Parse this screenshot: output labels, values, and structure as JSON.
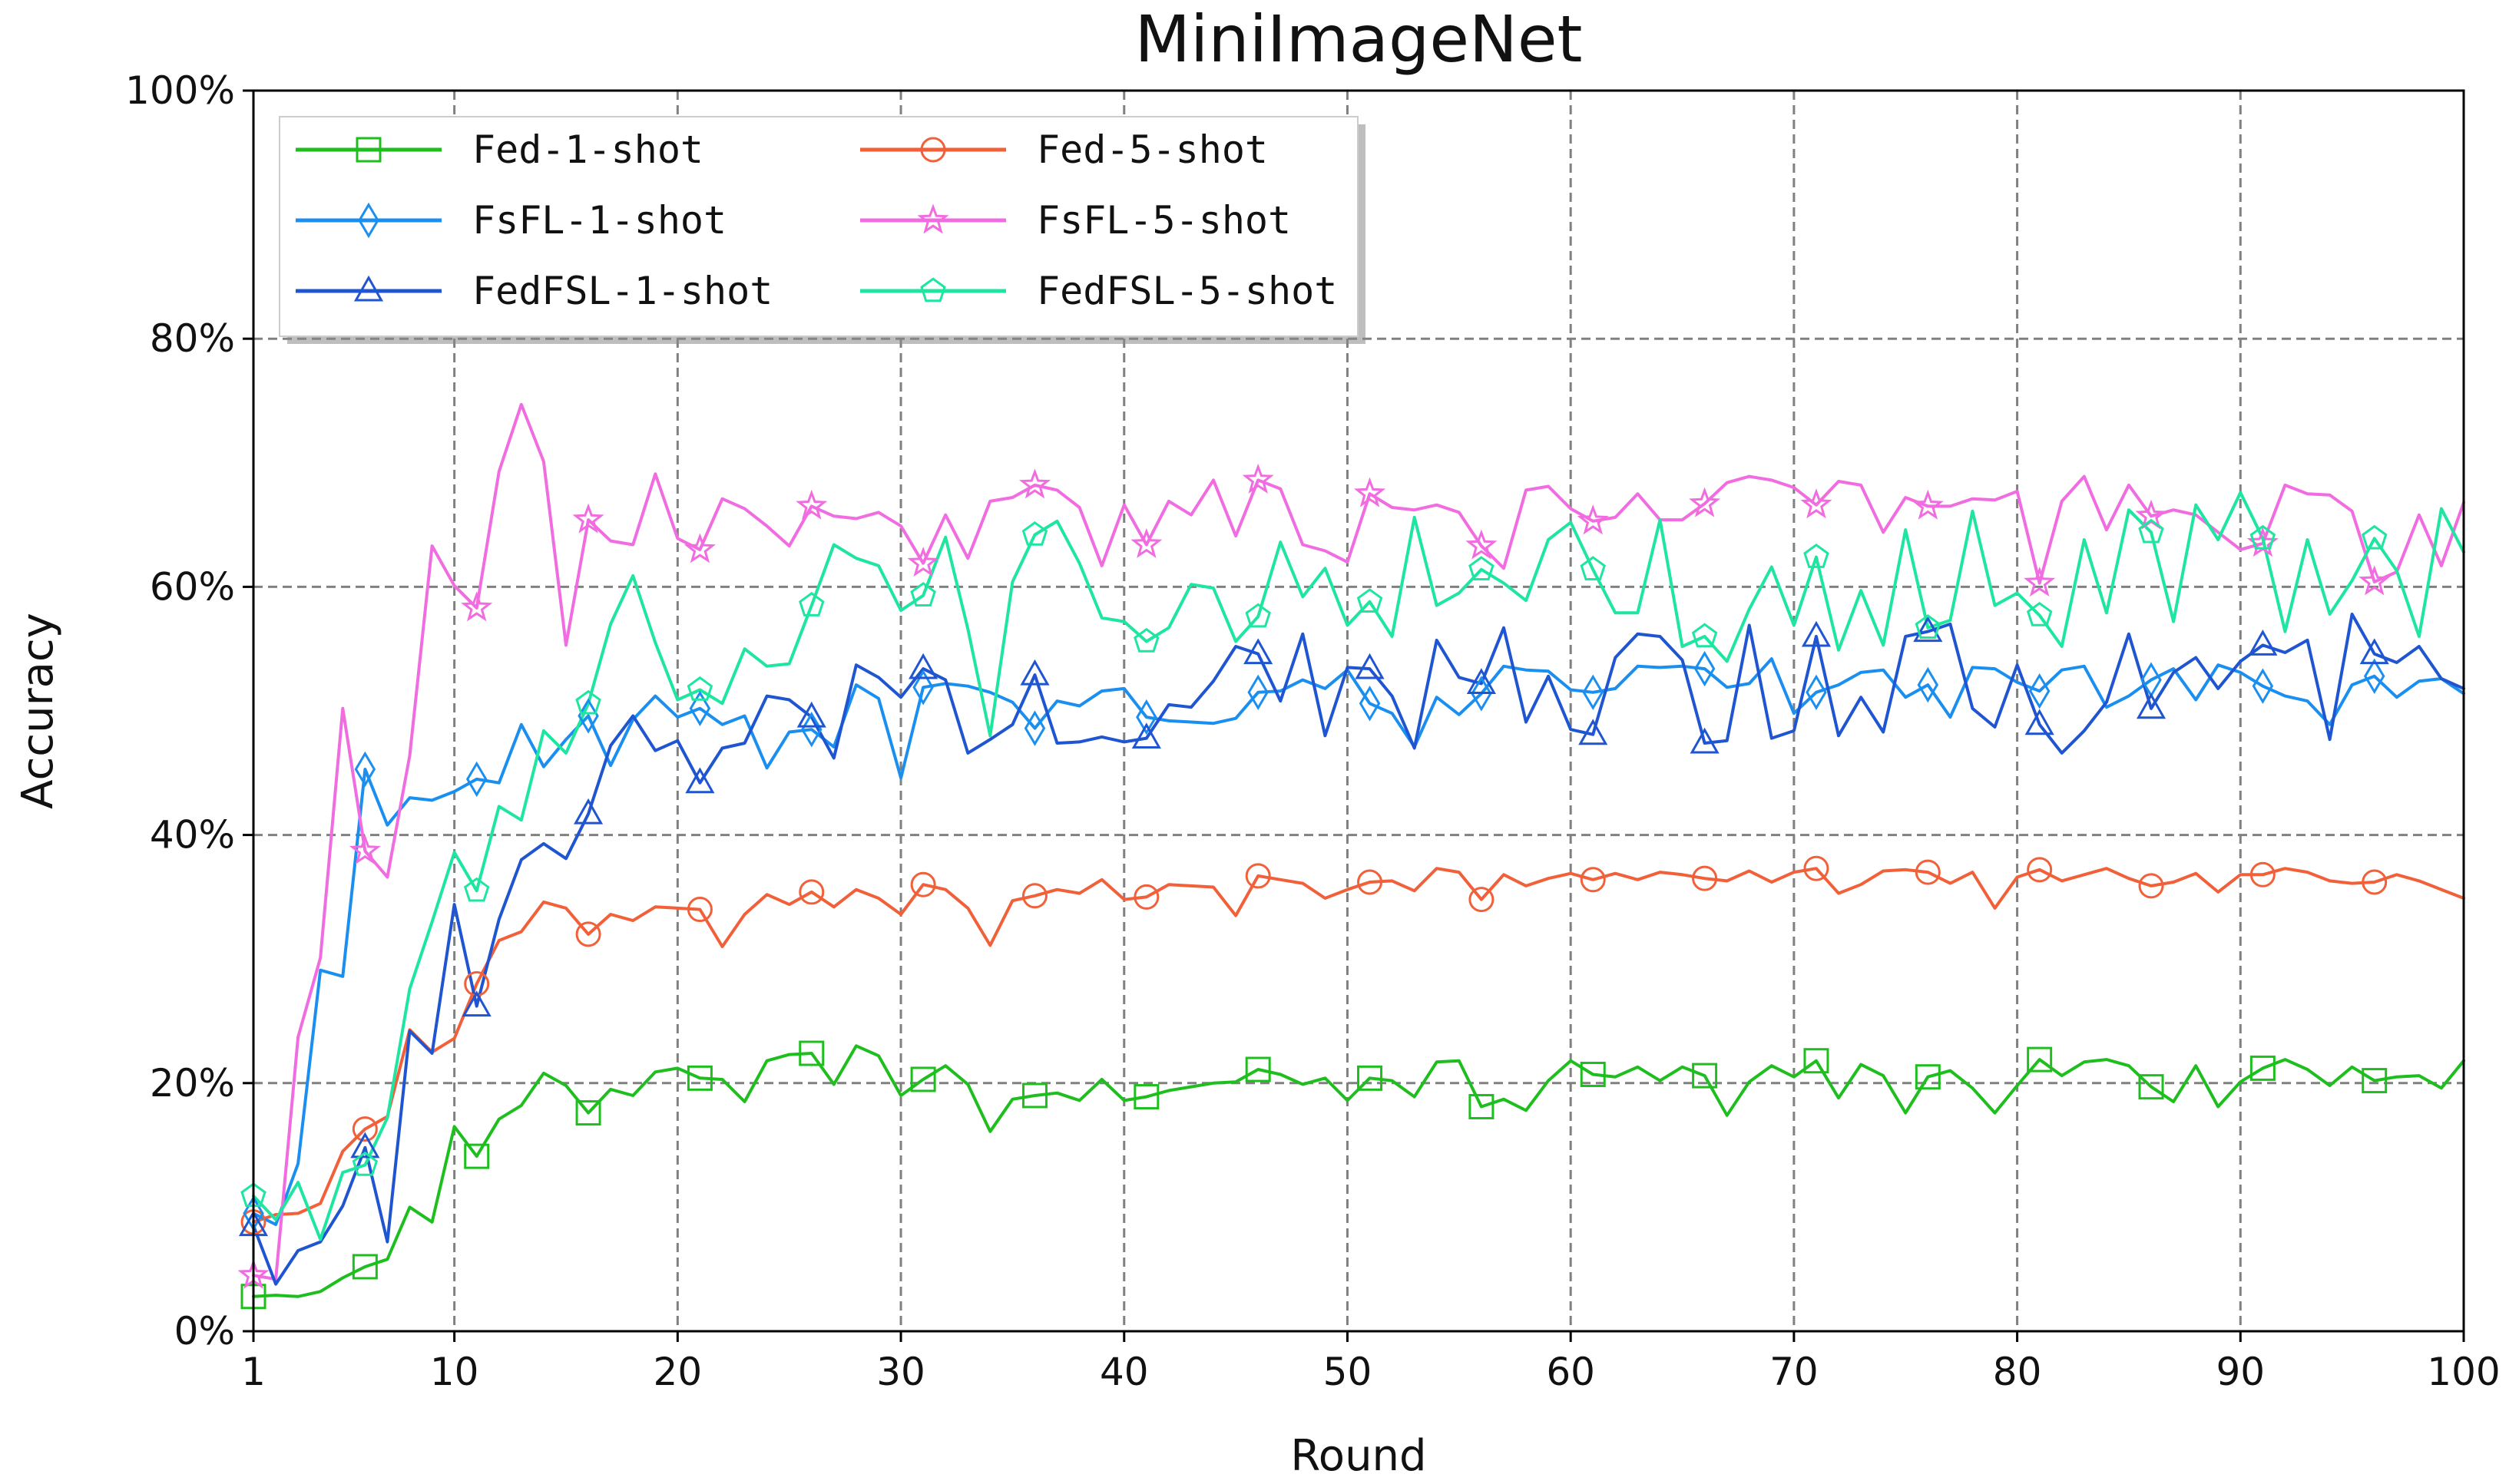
{
  "chart_data": {
    "type": "line",
    "title": "MiniImageNet",
    "xlabel": "Round",
    "ylabel": "Accuracy",
    "xlim": [
      1,
      100
    ],
    "ylim": [
      0,
      100
    ],
    "xticks": [
      1,
      10,
      20,
      30,
      40,
      50,
      60,
      70,
      80,
      90,
      100
    ],
    "xtick_labels": [
      "1",
      "10",
      "20",
      "30",
      "40",
      "50",
      "60",
      "70",
      "80",
      "90",
      "100"
    ],
    "yticks": [
      0,
      20,
      40,
      60,
      80,
      100
    ],
    "ytick_labels": [
      "0%",
      "20%",
      "40%",
      "60%",
      "80%",
      "100%"
    ],
    "grid": true,
    "legend_position": "top-left",
    "x": [
      1,
      2,
      3,
      4,
      5,
      6,
      7,
      8,
      9,
      10,
      11,
      12,
      13,
      14,
      15,
      16,
      17,
      18,
      19,
      20,
      21,
      22,
      23,
      24,
      25,
      26,
      27,
      28,
      29,
      30,
      31,
      32,
      33,
      34,
      35,
      36,
      37,
      38,
      39,
      40,
      41,
      42,
      43,
      44,
      45,
      46,
      47,
      48,
      49,
      50,
      51,
      52,
      53,
      54,
      55,
      56,
      57,
      58,
      59,
      60,
      61,
      62,
      63,
      64,
      65,
      66,
      67,
      68,
      69,
      70,
      71,
      72,
      73,
      74,
      75,
      76,
      77,
      78,
      79,
      80,
      81,
      82,
      83,
      84,
      85,
      86,
      87,
      88,
      89,
      90,
      91,
      92,
      93,
      94,
      95,
      96,
      97,
      98,
      99,
      100
    ],
    "series": [
      {
        "name": "Fed-1-shot",
        "color": "#1fbe1f",
        "marker": "square",
        "values": [
          2.8,
          2.9,
          2.8,
          3.2,
          4.3,
          5.2,
          5.8,
          10.0,
          8.8,
          16.5,
          14.1,
          17.1,
          18.2,
          20.8,
          19.8,
          17.6,
          19.5,
          19.0,
          20.9,
          21.2,
          20.4,
          20.3,
          18.5,
          21.8,
          22.3,
          22.4,
          19.9,
          23.0,
          22.2,
          19.0,
          20.3,
          21.4,
          19.9,
          16.1,
          18.7,
          19.0,
          19.2,
          18.6,
          20.3,
          18.6,
          18.9,
          19.4,
          19.7,
          20.0,
          20.1,
          21.1,
          20.7,
          19.9,
          20.4,
          18.6,
          20.4,
          20.2,
          18.9,
          21.7,
          21.8,
          18.1,
          18.7,
          17.8,
          20.2,
          21.8,
          20.7,
          20.5,
          21.3,
          20.2,
          21.3,
          20.6,
          17.4,
          20.1,
          21.4,
          20.5,
          21.8,
          18.8,
          21.5,
          20.6,
          17.6,
          20.5,
          21.0,
          19.6,
          17.6,
          19.8,
          21.9,
          20.6,
          21.7,
          21.9,
          21.4,
          19.7,
          18.5,
          21.4,
          18.1,
          20.1,
          21.2,
          21.9,
          21.1,
          19.8,
          21.3,
          20.2,
          20.5,
          20.6,
          19.6,
          21.8
        ]
      },
      {
        "name": "Fed-5-shot",
        "color": "#f2603a",
        "marker": "circle",
        "values": [
          8.8,
          9.4,
          9.5,
          10.3,
          14.5,
          16.3,
          17.3,
          24.3,
          22.5,
          23.6,
          28.0,
          31.5,
          32.2,
          34.6,
          34.1,
          32.0,
          33.6,
          33.1,
          34.2,
          34.1,
          34.0,
          31.0,
          33.6,
          35.2,
          34.4,
          35.4,
          34.2,
          35.6,
          34.9,
          33.6,
          36.0,
          35.6,
          34.1,
          31.1,
          34.7,
          35.1,
          35.6,
          35.3,
          36.4,
          34.8,
          35.0,
          36.0,
          35.9,
          35.8,
          33.5,
          36.7,
          36.4,
          36.1,
          34.9,
          35.6,
          36.2,
          36.3,
          35.5,
          37.3,
          37.0,
          34.8,
          36.8,
          35.9,
          36.5,
          36.9,
          36.4,
          36.9,
          36.4,
          37.0,
          36.8,
          36.5,
          36.3,
          37.1,
          36.2,
          37.0,
          37.3,
          35.3,
          36.0,
          37.1,
          37.2,
          37.0,
          36.1,
          37.0,
          34.1,
          36.6,
          37.2,
          36.3,
          36.8,
          37.3,
          36.5,
          35.9,
          36.2,
          36.9,
          35.4,
          36.8,
          36.8,
          37.3,
          37.0,
          36.3,
          36.1,
          36.2,
          36.8,
          36.3,
          35.6,
          34.9
        ]
      },
      {
        "name": "FsFL-1-shot",
        "color": "#1a8ff0",
        "marker": "diamond",
        "values": [
          9.5,
          8.6,
          13.5,
          29.1,
          28.6,
          45.3,
          40.8,
          43.0,
          42.8,
          43.5,
          44.5,
          44.2,
          48.9,
          45.5,
          47.7,
          49.6,
          45.6,
          49.3,
          51.2,
          49.5,
          50.2,
          48.9,
          49.6,
          45.4,
          48.3,
          48.5,
          47.1,
          52.1,
          51.0,
          44.6,
          51.9,
          52.2,
          52.0,
          51.5,
          50.7,
          48.6,
          50.8,
          50.4,
          51.6,
          51.8,
          49.5,
          49.2,
          49.1,
          49.0,
          49.4,
          51.5,
          51.6,
          52.5,
          51.8,
          53.3,
          50.6,
          49.8,
          47.1,
          51.1,
          49.7,
          51.4,
          53.6,
          53.3,
          53.2,
          51.7,
          51.5,
          51.8,
          53.6,
          53.5,
          53.6,
          53.4,
          51.9,
          52.2,
          54.2,
          49.8,
          51.5,
          52.1,
          53.1,
          53.3,
          51.1,
          52.1,
          49.5,
          53.5,
          53.4,
          52.3,
          51.6,
          53.3,
          53.6,
          50.3,
          51.2,
          52.5,
          53.4,
          50.9,
          53.7,
          53.1,
          52.0,
          51.2,
          50.8,
          48.9,
          52.1,
          52.8,
          51.1,
          52.4,
          52.6,
          51.4
        ]
      },
      {
        "name": "FsFL-5-shot",
        "color": "#f06ce0",
        "marker": "star",
        "values": [
          4.5,
          4.2,
          23.7,
          30.1,
          50.2,
          38.7,
          36.6,
          46.4,
          63.3,
          60.1,
          58.3,
          69.3,
          74.7,
          70.1,
          55.3,
          65.4,
          63.7,
          63.4,
          69.1,
          63.9,
          63.0,
          67.1,
          66.3,
          64.9,
          63.3,
          66.5,
          65.7,
          65.5,
          66.0,
          64.9,
          61.9,
          65.8,
          62.3,
          66.9,
          67.2,
          68.2,
          67.8,
          66.4,
          61.7,
          66.6,
          63.4,
          66.9,
          65.8,
          68.6,
          64.1,
          68.6,
          67.9,
          63.4,
          62.9,
          62.0,
          67.5,
          66.4,
          66.2,
          66.6,
          66.0,
          63.3,
          61.5,
          67.8,
          68.1,
          66.3,
          65.3,
          65.6,
          67.5,
          65.4,
          65.4,
          66.7,
          68.4,
          68.9,
          68.6,
          68.0,
          66.6,
          68.5,
          68.2,
          64.4,
          67.2,
          66.5,
          66.5,
          67.1,
          67.0,
          67.7,
          60.3,
          66.9,
          68.9,
          64.6,
          68.2,
          65.7,
          66.2,
          65.8,
          64.4,
          63.0,
          63.5,
          68.2,
          67.5,
          67.4,
          66.1,
          60.4,
          61.2,
          65.8,
          61.7,
          66.8
        ]
      },
      {
        "name": "FedFSL-1-shot",
        "color": "#1f55d1",
        "marker": "triangle",
        "values": [
          8.5,
          3.8,
          6.5,
          7.2,
          10.1,
          14.8,
          7.2,
          24.2,
          22.4,
          34.4,
          26.2,
          33.2,
          38.0,
          39.3,
          38.1,
          41.7,
          47.2,
          49.6,
          46.8,
          47.6,
          44.2,
          47.0,
          47.4,
          51.2,
          50.9,
          49.5,
          46.2,
          53.7,
          52.7,
          51.1,
          53.4,
          52.5,
          46.6,
          47.7,
          48.9,
          52.9,
          47.4,
          47.5,
          47.9,
          47.5,
          47.8,
          50.5,
          50.3,
          52.4,
          55.2,
          54.6,
          50.8,
          56.2,
          48.0,
          53.5,
          53.4,
          51.2,
          47.0,
          55.7,
          52.7,
          52.2,
          56.7,
          49.1,
          52.8,
          48.5,
          48.1,
          54.3,
          56.2,
          56.0,
          54.1,
          47.4,
          47.6,
          56.9,
          47.8,
          48.4,
          56.0,
          48.0,
          51.1,
          48.3,
          56.0,
          56.4,
          57.0,
          50.2,
          48.7,
          53.7,
          48.9,
          46.6,
          48.4,
          50.7,
          56.2,
          50.2,
          53.1,
          54.3,
          51.8,
          54.0,
          55.3,
          54.7,
          55.7,
          47.7,
          57.8,
          54.6,
          53.9,
          55.2,
          52.6,
          51.8
        ]
      },
      {
        "name": "FedFSL-5-shot",
        "color": "#1ee6a0",
        "marker": "pentagon",
        "values": [
          10.9,
          9.0,
          12.0,
          7.4,
          12.8,
          13.4,
          17.2,
          27.6,
          33.0,
          38.6,
          35.5,
          42.3,
          41.2,
          48.4,
          46.6,
          50.6,
          57.0,
          60.9,
          55.5,
          50.9,
          51.7,
          50.6,
          55.0,
          53.6,
          53.8,
          58.5,
          63.4,
          62.3,
          61.7,
          58.1,
          59.3,
          64.0,
          56.6,
          48.0,
          60.4,
          64.2,
          65.3,
          61.9,
          57.5,
          57.2,
          55.6,
          56.7,
          60.2,
          59.9,
          55.6,
          57.6,
          63.6,
          59.2,
          61.5,
          56.9,
          58.8,
          56.0,
          65.6,
          58.5,
          59.5,
          61.4,
          60.3,
          58.9,
          63.8,
          65.2,
          61.4,
          57.9,
          57.9,
          65.4,
          55.2,
          56.0,
          54.0,
          58.2,
          61.6,
          56.9,
          62.4,
          54.9,
          59.7,
          55.3,
          64.6,
          56.7,
          57.3,
          66.1,
          58.5,
          59.5,
          57.7,
          55.2,
          63.8,
          57.9,
          66.2,
          64.4,
          57.2,
          66.6,
          63.8,
          67.6,
          63.9,
          56.4,
          63.8,
          57.8,
          60.5,
          63.9,
          61.3,
          56.0,
          66.3,
          62.8
        ]
      }
    ]
  }
}
